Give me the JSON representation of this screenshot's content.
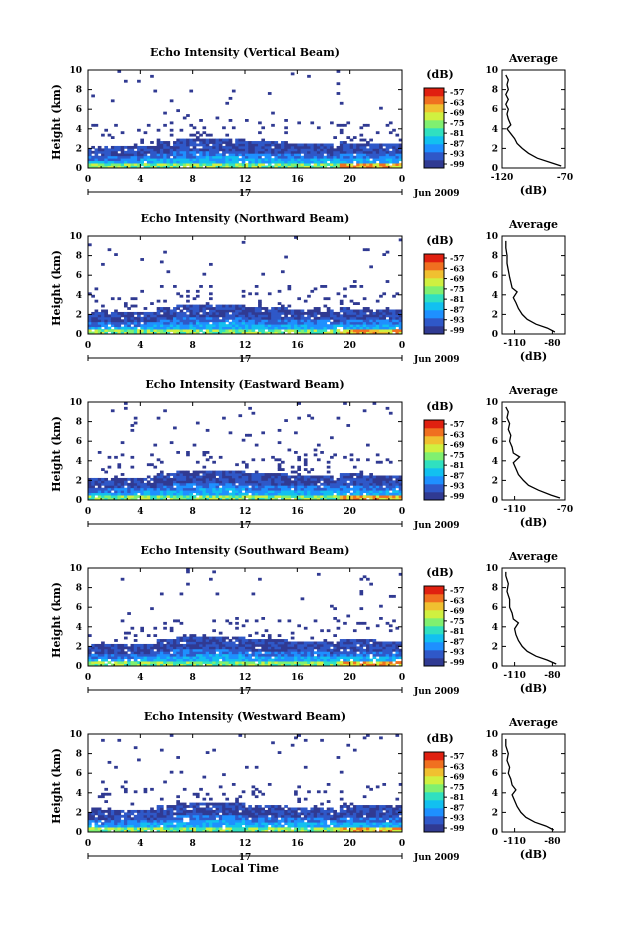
{
  "figure": {
    "date_label": "Jun 2009",
    "day_label": "17",
    "footer_xlabel": "Local Time",
    "ylabel": "Height (km)",
    "avg_title": "Average",
    "avg_xlabel": "(dB)",
    "colorbar_title": "(dB)",
    "colorbar_ticks": [
      "-57",
      "-63",
      "-69",
      "-75",
      "-81",
      "-87",
      "-93",
      "-99"
    ],
    "colors": {
      "colormap": [
        "#303a92",
        "#2f58c8",
        "#1e90ff",
        "#12c0f0",
        "#30e0c0",
        "#80f070",
        "#d0f040",
        "#f0c030",
        "#f07020",
        "#e02010"
      ]
    }
  },
  "chart_data": [
    {
      "type": "heatmap",
      "title": "Echo Intensity (Vertical Beam)",
      "xlabel": "",
      "ylabel": "Height (km)",
      "xlim": [
        0,
        24
      ],
      "ylim": [
        0,
        10
      ],
      "x_ticks": [
        "0",
        "4",
        "8",
        "12",
        "16",
        "20",
        "0"
      ],
      "y_ticks": [
        "0",
        "2",
        "4",
        "6",
        "8",
        "10"
      ],
      "colorbar": {
        "label": "(dB)",
        "range": [
          -99,
          -57
        ]
      },
      "average_profile": {
        "title": "Average",
        "xlabel": "(dB)",
        "xlim": [
          -120,
          -70
        ],
        "x_ticks": [
          "-120",
          "-70"
        ],
        "y_ticks": [
          "0",
          "2",
          "4",
          "6",
          "8",
          "10"
        ],
        "points": [
          [
            -73,
            0.2
          ],
          [
            -80,
            0.5
          ],
          [
            -92,
            1.0
          ],
          [
            -99,
            1.5
          ],
          [
            -104,
            2.0
          ],
          [
            -108,
            2.5
          ],
          [
            -110,
            3.0
          ],
          [
            -113,
            3.5
          ],
          [
            -116,
            4.0
          ],
          [
            -113,
            4.4
          ],
          [
            -115,
            5.0
          ],
          [
            -116,
            5.5
          ],
          [
            -115,
            6.0
          ],
          [
            -117,
            6.5
          ],
          [
            -115,
            7.0
          ],
          [
            -117,
            7.5
          ],
          [
            -115,
            8.0
          ],
          [
            -116,
            8.5
          ],
          [
            -115,
            9.0
          ],
          [
            -117,
            9.5
          ]
        ]
      }
    },
    {
      "type": "heatmap",
      "title": "Echo Intensity (Northward Beam)",
      "xlabel": "",
      "ylabel": "Height (km)",
      "xlim": [
        0,
        24
      ],
      "ylim": [
        0,
        10
      ],
      "x_ticks": [
        "0",
        "4",
        "8",
        "12",
        "16",
        "20",
        "0"
      ],
      "y_ticks": [
        "0",
        "2",
        "4",
        "6",
        "8",
        "10"
      ],
      "colorbar": {
        "label": "(dB)",
        "range": [
          -99,
          -57
        ]
      },
      "average_profile": {
        "title": "Average",
        "xlabel": "(dB)",
        "xlim": [
          -120,
          -70
        ],
        "x_ticks": [
          "-110",
          "-80"
        ],
        "y_ticks": [
          "0",
          "2",
          "4",
          "6",
          "8",
          "10"
        ],
        "points": [
          [
            -78,
            0.2
          ],
          [
            -84,
            0.6
          ],
          [
            -93,
            1.0
          ],
          [
            -100,
            1.5
          ],
          [
            -104,
            2.0
          ],
          [
            -107,
            2.6
          ],
          [
            -109,
            3.2
          ],
          [
            -111,
            3.7
          ],
          [
            -108,
            4.3
          ],
          [
            -112,
            4.7
          ],
          [
            -113,
            5.3
          ],
          [
            -114,
            5.8
          ],
          [
            -115,
            6.5
          ],
          [
            -116,
            7.2
          ],
          [
            -116,
            8.0
          ],
          [
            -117,
            8.8
          ],
          [
            -117,
            9.5
          ]
        ]
      }
    },
    {
      "type": "heatmap",
      "title": "Echo Intensity (Eastward Beam)",
      "xlabel": "",
      "ylabel": "Height (km)",
      "xlim": [
        0,
        24
      ],
      "ylim": [
        0,
        10
      ],
      "x_ticks": [
        "0",
        "4",
        "8",
        "12",
        "16",
        "20",
        "0"
      ],
      "y_ticks": [
        "0",
        "2",
        "4",
        "6",
        "8",
        "10"
      ],
      "colorbar": {
        "label": "(dB)",
        "range": [
          -99,
          -57
        ]
      },
      "average_profile": {
        "title": "Average",
        "xlabel": "(dB)",
        "xlim": [
          -120,
          -70
        ],
        "x_ticks": [
          "-110",
          "-70"
        ],
        "y_ticks": [
          "0",
          "2",
          "4",
          "6",
          "8",
          "10"
        ],
        "points": [
          [
            -74,
            0.2
          ],
          [
            -81,
            0.5
          ],
          [
            -91,
            1.0
          ],
          [
            -99,
            1.5
          ],
          [
            -103,
            2.0
          ],
          [
            -107,
            2.6
          ],
          [
            -109,
            3.2
          ],
          [
            -111,
            3.8
          ],
          [
            -106,
            4.4
          ],
          [
            -111,
            4.8
          ],
          [
            -112,
            5.4
          ],
          [
            -114,
            6.0
          ],
          [
            -113,
            6.6
          ],
          [
            -115,
            7.2
          ],
          [
            -114,
            7.8
          ],
          [
            -116,
            8.4
          ],
          [
            -115,
            9.0
          ],
          [
            -117,
            9.5
          ]
        ]
      }
    },
    {
      "type": "heatmap",
      "title": "Echo Intensity (Southward Beam)",
      "xlabel": "",
      "ylabel": "Height (km)",
      "xlim": [
        0,
        24
      ],
      "ylim": [
        0,
        10
      ],
      "x_ticks": [
        "0",
        "4",
        "8",
        "12",
        "16",
        "20",
        "0"
      ],
      "y_ticks": [
        "0",
        "2",
        "4",
        "6",
        "8",
        "10"
      ],
      "colorbar": {
        "label": "(dB)",
        "range": [
          -99,
          -57
        ]
      },
      "average_profile": {
        "title": "Average",
        "xlabel": "(dB)",
        "xlim": [
          -120,
          -70
        ],
        "x_ticks": [
          "-110",
          "-80"
        ],
        "y_ticks": [
          "0",
          "2",
          "4",
          "6",
          "8",
          "10"
        ],
        "points": [
          [
            -77,
            0.2
          ],
          [
            -84,
            0.6
          ],
          [
            -93,
            1.0
          ],
          [
            -100,
            1.5
          ],
          [
            -104,
            2.0
          ],
          [
            -107,
            2.6
          ],
          [
            -109,
            3.2
          ],
          [
            -110,
            3.8
          ],
          [
            -107,
            4.4
          ],
          [
            -111,
            4.8
          ],
          [
            -112,
            5.4
          ],
          [
            -114,
            6.0
          ],
          [
            -114,
            6.8
          ],
          [
            -116,
            7.6
          ],
          [
            -115,
            8.4
          ],
          [
            -117,
            9.2
          ],
          [
            -117,
            9.6
          ]
        ]
      }
    },
    {
      "type": "heatmap",
      "title": "Echo Intensity (Westward Beam)",
      "xlabel": "Local Time",
      "ylabel": "Height (km)",
      "xlim": [
        0,
        24
      ],
      "ylim": [
        0,
        10
      ],
      "x_ticks": [
        "0",
        "4",
        "8",
        "12",
        "16",
        "20",
        "0"
      ],
      "y_ticks": [
        "0",
        "2",
        "4",
        "6",
        "8",
        "10"
      ],
      "colorbar": {
        "label": "(dB)",
        "range": [
          -99,
          -57
        ]
      },
      "average_profile": {
        "title": "Average",
        "xlabel": "(dB)",
        "xlim": [
          -120,
          -70
        ],
        "x_ticks": [
          "-110",
          "-80"
        ],
        "y_ticks": [
          "0",
          "2",
          "4",
          "6",
          "8",
          "10"
        ],
        "points": [
          [
            -79,
            0.2
          ],
          [
            -85,
            0.6
          ],
          [
            -94,
            1.0
          ],
          [
            -101,
            1.5
          ],
          [
            -105,
            2.0
          ],
          [
            -108,
            2.6
          ],
          [
            -110,
            3.2
          ],
          [
            -112,
            3.8
          ],
          [
            -109,
            4.3
          ],
          [
            -112,
            4.8
          ],
          [
            -113,
            5.4
          ],
          [
            -115,
            6.0
          ],
          [
            -114,
            6.6
          ],
          [
            -116,
            7.3
          ],
          [
            -115,
            8.0
          ],
          [
            -117,
            8.8
          ],
          [
            -117,
            9.5
          ]
        ]
      }
    }
  ]
}
